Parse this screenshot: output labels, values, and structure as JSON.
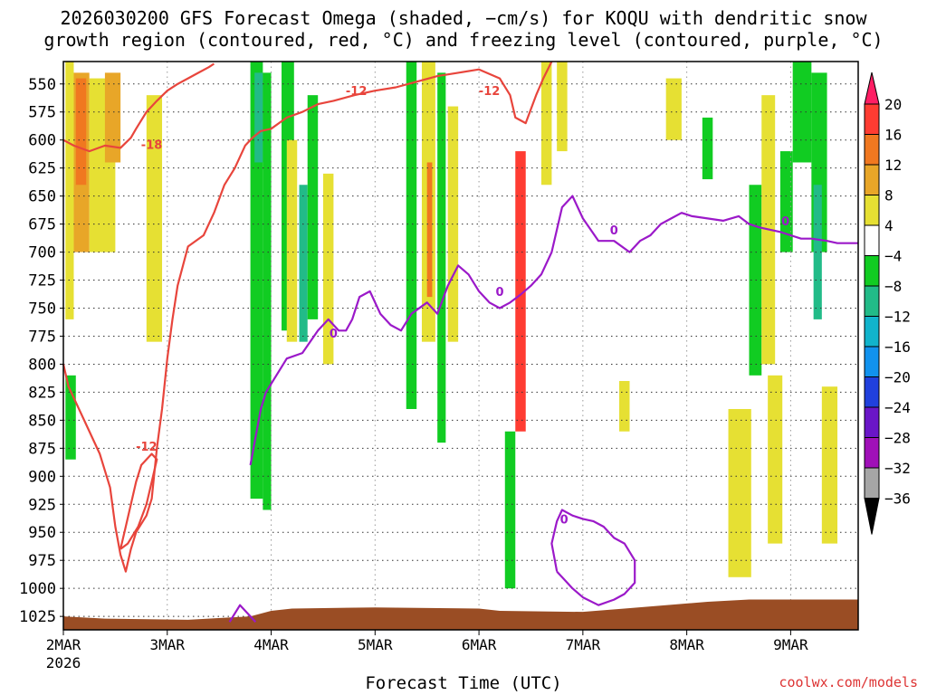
{
  "title_line1": "2026030200 GFS Forecast Omega (shaded, −cm/s) for KOQU with dendritic snow",
  "title_line2": "growth region (contoured, red, °C) and freezing level (contoured, purple, °C)",
  "xlabel": "Forecast Time (UTC)",
  "credit": "coolwx.com/models",
  "chart_data": {
    "type": "heatmap",
    "title": "2026030200 GFS Forecast Omega (shaded, −cm/s) for KOQU with dendritic snow growth region (contoured, red, °C) and freezing level (contoured, purple, °C)",
    "xlabel": "Forecast Time (UTC)",
    "x_ticks": [
      "2MAR",
      "3MAR",
      "4MAR",
      "5MAR",
      "6MAR",
      "7MAR",
      "8MAR",
      "9MAR"
    ],
    "x_tick_sub": "2026",
    "xlim_days": [
      2,
      9.65
    ],
    "y_ticks": [
      550,
      575,
      600,
      625,
      650,
      675,
      700,
      725,
      750,
      775,
      800,
      825,
      850,
      875,
      900,
      925,
      950,
      975,
      1000,
      1025
    ],
    "ylim": [
      530,
      1037
    ],
    "colorbar": {
      "labels": [
        20,
        16,
        12,
        8,
        4,
        -4,
        -8,
        -12,
        -16,
        -20,
        -24,
        -28,
        -32,
        -36
      ],
      "colors": [
        "#ff1e64",
        "#ff3c32",
        "#f07820",
        "#e8a628",
        "#e6e033",
        "#ffffff",
        "#11cc22",
        "#22bb88",
        "#11b4cc",
        "#1192ee",
        "#2040dd",
        "#6a16c8",
        "#a010b8",
        "#a6a6a6",
        "#000000"
      ]
    },
    "omega_cells": [
      {
        "x0": 2.02,
        "x1": 2.1,
        "p0": 530,
        "p1": 760,
        "v": 6
      },
      {
        "x0": 2.1,
        "x1": 2.25,
        "p0": 540,
        "p1": 700,
        "v": 10
      },
      {
        "x0": 2.12,
        "x1": 2.22,
        "p0": 545,
        "p1": 640,
        "v": 13
      },
      {
        "x0": 2.25,
        "x1": 2.5,
        "p0": 545,
        "p1": 700,
        "v": 7
      },
      {
        "x0": 2.4,
        "x1": 2.55,
        "p0": 540,
        "p1": 620,
        "v": 9
      },
      {
        "x0": 2.02,
        "x1": 2.12,
        "p0": 810,
        "p1": 885,
        "v": -6
      },
      {
        "x0": 2.8,
        "x1": 2.95,
        "p0": 560,
        "p1": 780,
        "v": 6
      },
      {
        "x0": 3.8,
        "x1": 3.92,
        "p0": 530,
        "p1": 920,
        "v": -6
      },
      {
        "x0": 3.84,
        "x1": 3.92,
        "p0": 540,
        "p1": 620,
        "v": -10
      },
      {
        "x0": 3.92,
        "x1": 4.0,
        "p0": 540,
        "p1": 930,
        "v": -5
      },
      {
        "x0": 4.1,
        "x1": 4.22,
        "p0": 530,
        "p1": 770,
        "v": -6
      },
      {
        "x0": 4.15,
        "x1": 4.25,
        "p0": 600,
        "p1": 780,
        "v": 5
      },
      {
        "x0": 4.27,
        "x1": 4.35,
        "p0": 640,
        "p1": 780,
        "v": -8
      },
      {
        "x0": 4.35,
        "x1": 4.45,
        "p0": 560,
        "p1": 760,
        "v": -6
      },
      {
        "x0": 4.5,
        "x1": 4.6,
        "p0": 630,
        "p1": 800,
        "v": 5
      },
      {
        "x0": 5.3,
        "x1": 5.4,
        "p0": 530,
        "p1": 840,
        "v": -6
      },
      {
        "x0": 5.45,
        "x1": 5.58,
        "p0": 530,
        "p1": 780,
        "v": 6
      },
      {
        "x0": 5.5,
        "x1": 5.55,
        "p0": 620,
        "p1": 740,
        "v": 12
      },
      {
        "x0": 5.6,
        "x1": 5.68,
        "p0": 540,
        "p1": 870,
        "v": -6
      },
      {
        "x0": 5.7,
        "x1": 5.8,
        "p0": 570,
        "p1": 780,
        "v": 6
      },
      {
        "x0": 6.25,
        "x1": 6.35,
        "p0": 860,
        "p1": 1000,
        "v": -6
      },
      {
        "x0": 6.35,
        "x1": 6.45,
        "p0": 610,
        "p1": 860,
        "v": 18
      },
      {
        "x0": 6.6,
        "x1": 6.7,
        "p0": 530,
        "p1": 640,
        "v": 6
      },
      {
        "x0": 6.75,
        "x1": 6.85,
        "p0": 530,
        "p1": 610,
        "v": 6
      },
      {
        "x0": 7.35,
        "x1": 7.45,
        "p0": 815,
        "p1": 860,
        "v": 6
      },
      {
        "x0": 7.8,
        "x1": 7.95,
        "p0": 545,
        "p1": 600,
        "v": 6
      },
      {
        "x0": 8.15,
        "x1": 8.25,
        "p0": 580,
        "p1": 635,
        "v": -6
      },
      {
        "x0": 8.4,
        "x1": 8.62,
        "p0": 840,
        "p1": 990,
        "v": 6
      },
      {
        "x0": 8.6,
        "x1": 8.72,
        "p0": 640,
        "p1": 810,
        "v": -6
      },
      {
        "x0": 8.78,
        "x1": 8.92,
        "p0": 810,
        "p1": 960,
        "v": 6
      },
      {
        "x0": 8.72,
        "x1": 8.85,
        "p0": 560,
        "p1": 800,
        "v": 6
      },
      {
        "x0": 8.9,
        "x1": 9.02,
        "p0": 610,
        "p1": 700,
        "v": -6
      },
      {
        "x0": 9.2,
        "x1": 9.35,
        "p0": 540,
        "p1": 700,
        "v": -6
      },
      {
        "x0": 9.22,
        "x1": 9.3,
        "p0": 640,
        "p1": 760,
        "v": -10
      },
      {
        "x0": 9.02,
        "x1": 9.2,
        "p0": 530,
        "p1": 620,
        "v": -7
      },
      {
        "x0": 9.3,
        "x1": 9.45,
        "p0": 820,
        "p1": 960,
        "v": 6
      }
    ],
    "contours": [
      {
        "series": "dendritic snow growth region",
        "color": "#e8453c",
        "value": -18,
        "label": "-18",
        "points": [
          [
            2.0,
            600
          ],
          [
            2.1,
            605
          ],
          [
            2.25,
            610
          ],
          [
            2.4,
            605
          ],
          [
            2.55,
            607
          ],
          [
            2.65,
            598
          ],
          [
            2.7,
            590
          ],
          [
            2.8,
            575
          ],
          [
            2.9,
            565
          ],
          [
            3.0,
            556
          ],
          [
            3.1,
            550
          ],
          [
            3.2,
            545
          ],
          [
            3.3,
            540
          ],
          [
            3.4,
            535
          ],
          [
            3.45,
            532
          ]
        ]
      },
      {
        "series": "dendritic snow growth region",
        "color": "#e8453c",
        "value": -12,
        "label": "-12",
        "points": [
          [
            2.0,
            800
          ],
          [
            2.05,
            820
          ],
          [
            2.2,
            850
          ],
          [
            2.35,
            880
          ],
          [
            2.45,
            910
          ],
          [
            2.5,
            945
          ],
          [
            2.55,
            970
          ],
          [
            2.6,
            985
          ],
          [
            2.65,
            965
          ],
          [
            2.7,
            950
          ],
          [
            2.8,
            935
          ],
          [
            2.85,
            920
          ],
          [
            2.9,
            875
          ],
          [
            2.95,
            840
          ],
          [
            3.0,
            795
          ],
          [
            3.05,
            760
          ],
          [
            3.1,
            730
          ],
          [
            3.2,
            695
          ],
          [
            3.35,
            685
          ],
          [
            3.45,
            665
          ],
          [
            3.55,
            640
          ],
          [
            3.65,
            625
          ],
          [
            3.75,
            605
          ],
          [
            3.82,
            598
          ],
          [
            3.9,
            592
          ],
          [
            4.0,
            590
          ],
          [
            4.15,
            580
          ],
          [
            4.3,
            575
          ],
          [
            4.45,
            568
          ],
          [
            4.6,
            565
          ],
          [
            4.8,
            560
          ],
          [
            5.0,
            556
          ],
          [
            5.2,
            553
          ],
          [
            5.4,
            548
          ],
          [
            5.6,
            543
          ],
          [
            5.8,
            540
          ],
          [
            6.0,
            537
          ],
          [
            6.2,
            545
          ],
          [
            6.3,
            560
          ],
          [
            6.35,
            580
          ],
          [
            6.45,
            585
          ],
          [
            6.55,
            560
          ],
          [
            6.62,
            545
          ],
          [
            6.7,
            530
          ]
        ]
      },
      {
        "series": "dendritic snow growth region",
        "color": "#e8453c",
        "value": -12,
        "label": "-12",
        "points": [
          [
            2.55,
            965
          ],
          [
            2.6,
            945
          ],
          [
            2.65,
            925
          ],
          [
            2.7,
            905
          ],
          [
            2.75,
            890
          ],
          [
            2.85,
            880
          ],
          [
            2.9,
            885
          ],
          [
            2.85,
            905
          ],
          [
            2.8,
            925
          ],
          [
            2.72,
            945
          ],
          [
            2.62,
            960
          ],
          [
            2.55,
            965
          ]
        ]
      },
      {
        "series": "freezing level",
        "color": "#9b19c9",
        "value": 0,
        "label": "0",
        "points": [
          [
            3.6,
            1030
          ],
          [
            3.7,
            1015
          ],
          [
            3.8,
            1025
          ],
          [
            3.85,
            1030
          ]
        ]
      },
      {
        "series": "freezing level",
        "color": "#9b19c9",
        "value": 0,
        "label": "0",
        "points": [
          [
            3.8,
            890
          ],
          [
            3.85,
            865
          ],
          [
            3.9,
            840
          ],
          [
            3.95,
            825
          ],
          [
            4.05,
            810
          ],
          [
            4.15,
            795
          ],
          [
            4.3,
            790
          ],
          [
            4.45,
            770
          ],
          [
            4.55,
            760
          ],
          [
            4.65,
            770
          ],
          [
            4.72,
            770
          ],
          [
            4.78,
            760
          ],
          [
            4.85,
            740
          ],
          [
            4.95,
            735
          ],
          [
            5.05,
            755
          ],
          [
            5.15,
            765
          ],
          [
            5.25,
            770
          ],
          [
            5.35,
            755
          ],
          [
            5.5,
            745
          ],
          [
            5.6,
            755
          ],
          [
            5.7,
            730
          ],
          [
            5.8,
            712
          ],
          [
            5.9,
            720
          ],
          [
            6.0,
            735
          ],
          [
            6.1,
            745
          ],
          [
            6.2,
            750
          ],
          [
            6.3,
            745
          ],
          [
            6.4,
            738
          ],
          [
            6.5,
            730
          ],
          [
            6.6,
            720
          ],
          [
            6.7,
            700
          ],
          [
            6.8,
            660
          ],
          [
            6.9,
            650
          ],
          [
            7.0,
            670
          ],
          [
            7.15,
            690
          ],
          [
            7.3,
            690
          ],
          [
            7.45,
            700
          ],
          [
            7.55,
            690
          ],
          [
            7.65,
            685
          ],
          [
            7.75,
            675
          ],
          [
            7.85,
            670
          ],
          [
            7.95,
            665
          ],
          [
            8.05,
            668
          ],
          [
            8.2,
            670
          ],
          [
            8.35,
            672
          ],
          [
            8.5,
            668
          ],
          [
            8.6,
            675
          ],
          [
            8.7,
            678
          ],
          [
            8.8,
            680
          ],
          [
            8.9,
            682
          ],
          [
            9.0,
            685
          ],
          [
            9.1,
            688
          ],
          [
            9.2,
            688
          ],
          [
            9.35,
            690
          ],
          [
            9.45,
            692
          ],
          [
            9.55,
            692
          ],
          [
            9.65,
            692
          ]
        ]
      },
      {
        "series": "freezing level",
        "color": "#9b19c9",
        "value": 0,
        "label": "0",
        "points": [
          [
            6.75,
            985
          ],
          [
            6.7,
            960
          ],
          [
            6.75,
            940
          ],
          [
            6.8,
            930
          ],
          [
            6.9,
            935
          ],
          [
            7.0,
            938
          ],
          [
            7.1,
            940
          ],
          [
            7.2,
            945
          ],
          [
            7.3,
            955
          ],
          [
            7.4,
            960
          ],
          [
            7.5,
            975
          ],
          [
            7.5,
            995
          ],
          [
            7.4,
            1005
          ],
          [
            7.3,
            1010
          ],
          [
            7.15,
            1015
          ],
          [
            7.0,
            1008
          ],
          [
            6.9,
            1000
          ],
          [
            6.8,
            990
          ],
          [
            6.75,
            985
          ]
        ]
      }
    ],
    "contour_labels": [
      {
        "text": "-18",
        "x": 2.85,
        "p": 604,
        "color": "#e8453c"
      },
      {
        "text": "-12",
        "x": 4.82,
        "p": 556,
        "color": "#e8453c"
      },
      {
        "text": "-12",
        "x": 6.1,
        "p": 556,
        "color": "#e8453c"
      },
      {
        "text": "-12",
        "x": 2.8,
        "p": 873,
        "color": "#e8453c"
      },
      {
        "text": "0",
        "x": 7.3,
        "p": 680,
        "color": "#9b19c9"
      },
      {
        "text": "0",
        "x": 8.95,
        "p": 672,
        "color": "#9b19c9"
      },
      {
        "text": "0",
        "x": 6.2,
        "p": 735,
        "color": "#9b19c9"
      },
      {
        "text": "0",
        "x": 4.6,
        "p": 772,
        "color": "#9b19c9"
      },
      {
        "text": "0",
        "x": 6.82,
        "p": 938,
        "color": "#9b19c9"
      }
    ],
    "terrain": {
      "color": "#9a4d24",
      "points": [
        [
          2.0,
          1025
        ],
        [
          2.4,
          1027
        ],
        [
          3.2,
          1028
        ],
        [
          3.8,
          1025
        ],
        [
          4.0,
          1020
        ],
        [
          4.2,
          1018
        ],
        [
          5.0,
          1017
        ],
        [
          6.0,
          1018
        ],
        [
          6.2,
          1020
        ],
        [
          7.0,
          1021
        ],
        [
          7.4,
          1018
        ],
        [
          7.8,
          1015
        ],
        [
          8.2,
          1012
        ],
        [
          8.6,
          1010
        ],
        [
          9.0,
          1010
        ],
        [
          9.65,
          1010
        ]
      ]
    }
  }
}
